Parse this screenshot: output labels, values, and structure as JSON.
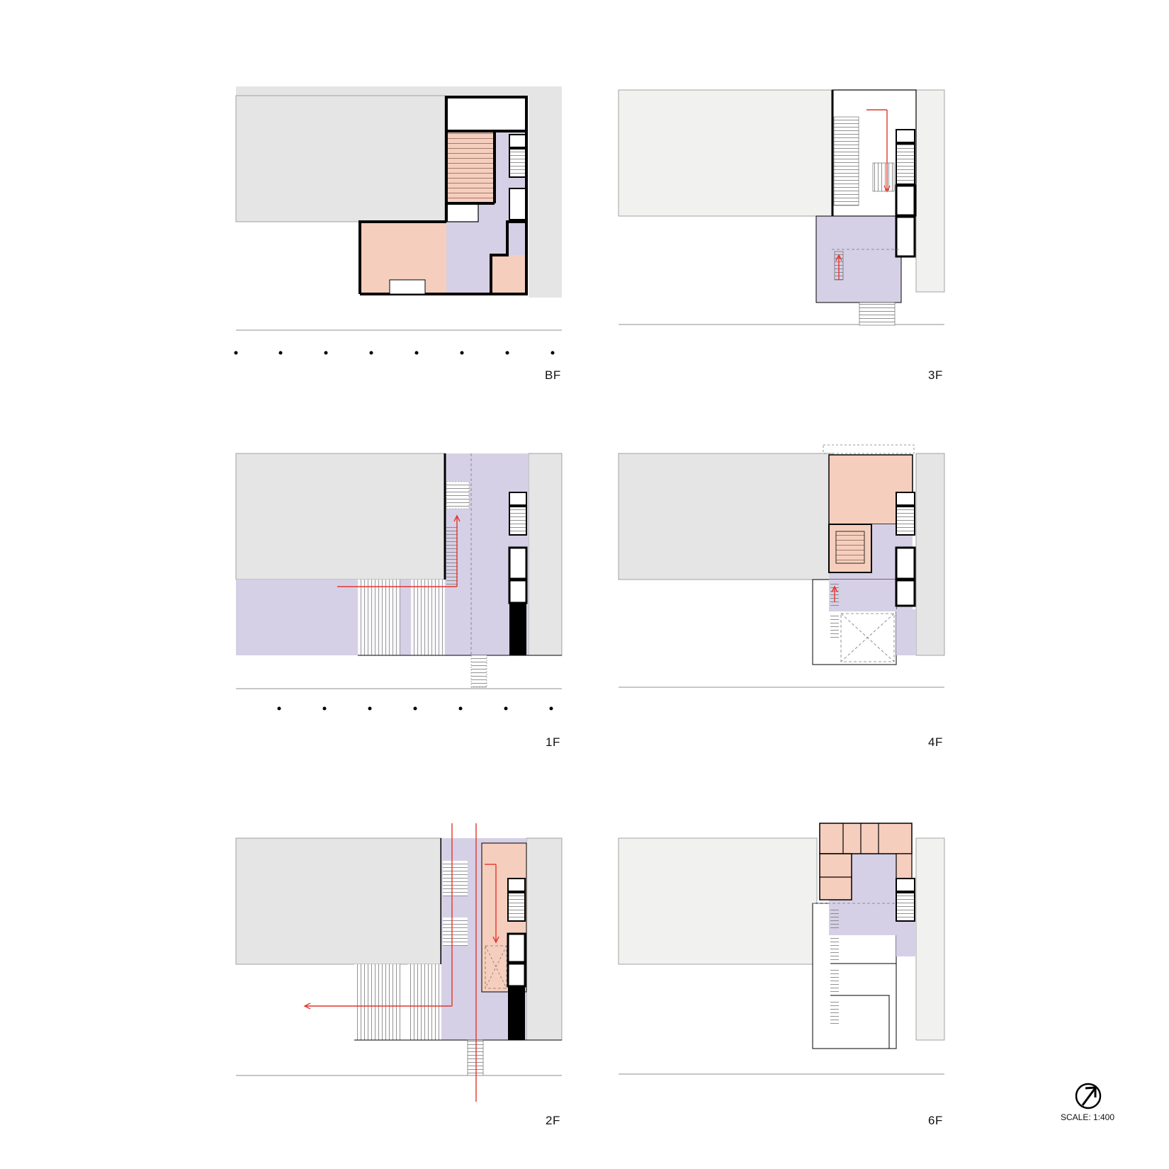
{
  "sheet": {
    "panels": [
      {
        "id": "bf",
        "label": "BF"
      },
      {
        "id": "f3",
        "label": "3F"
      },
      {
        "id": "f1",
        "label": "1F"
      },
      {
        "id": "f4",
        "label": "4F"
      },
      {
        "id": "f2",
        "label": "2F"
      },
      {
        "id": "f6",
        "label": "6F"
      }
    ],
    "scale": "SCALE: 1:400"
  },
  "colors": {
    "neighbor_building": "#e5e5e5",
    "neighbor_building_light": "#f1f1ef",
    "circulation": "#d6d0e6",
    "program": "#f6cebd",
    "wall": "#000000",
    "route_arrow": "#e2362b",
    "line": "#8f8f8f"
  },
  "icons": {
    "north": "north-arrow-icon"
  }
}
